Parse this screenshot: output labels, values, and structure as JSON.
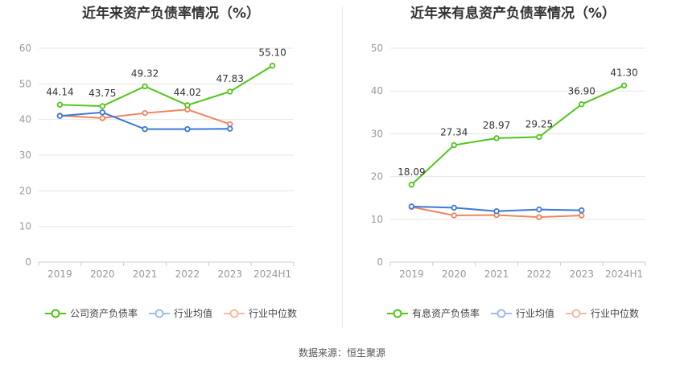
{
  "colors": {
    "main": "#52c41a",
    "avg": "#3a78d8",
    "median": "#f0845c",
    "grid": "#e6e6e6",
    "axis": "#999999",
    "label": "#333333"
  },
  "chart_data": [
    {
      "type": "line",
      "title": "近年来资产负债率情况（%）",
      "categories": [
        "2019",
        "2020",
        "2021",
        "2022",
        "2023",
        "2024H1"
      ],
      "ylim": [
        0,
        60
      ],
      "yticks": [
        "0",
        "10",
        "20",
        "30",
        "40",
        "50",
        "60"
      ],
      "series": [
        {
          "name": "公司资产负债率",
          "values": [
            44.14,
            43.75,
            49.32,
            44.02,
            47.83,
            55.1
          ],
          "labels": [
            "44.14",
            "43.75",
            "49.32",
            "44.02",
            "47.83",
            "55.10"
          ]
        },
        {
          "name": "行业均值",
          "values": [
            41.0,
            42.0,
            37.3,
            37.3,
            37.4,
            null
          ]
        },
        {
          "name": "行业中位数",
          "values": [
            41.1,
            40.4,
            41.8,
            42.8,
            38.7,
            null
          ]
        }
      ]
    },
    {
      "type": "line",
      "title": "近年来有息资产负债率情况（%）",
      "categories": [
        "2019",
        "2020",
        "2021",
        "2022",
        "2023",
        "2024H1"
      ],
      "ylim": [
        0,
        50
      ],
      "yticks": [
        "0",
        "10",
        "20",
        "30",
        "40",
        "50"
      ],
      "series": [
        {
          "name": "有息资产负债率",
          "values": [
            18.09,
            27.34,
            28.97,
            29.25,
            36.9,
            41.3
          ],
          "labels": [
            "18.09",
            "27.34",
            "28.97",
            "29.25",
            "36.90",
            "41.30"
          ]
        },
        {
          "name": "行业均值",
          "values": [
            13.0,
            12.7,
            11.9,
            12.3,
            12.1,
            null
          ]
        },
        {
          "name": "行业中位数",
          "values": [
            12.9,
            10.9,
            11.0,
            10.5,
            10.9,
            null
          ]
        }
      ]
    }
  ],
  "source": "数据来源：恒生聚源"
}
